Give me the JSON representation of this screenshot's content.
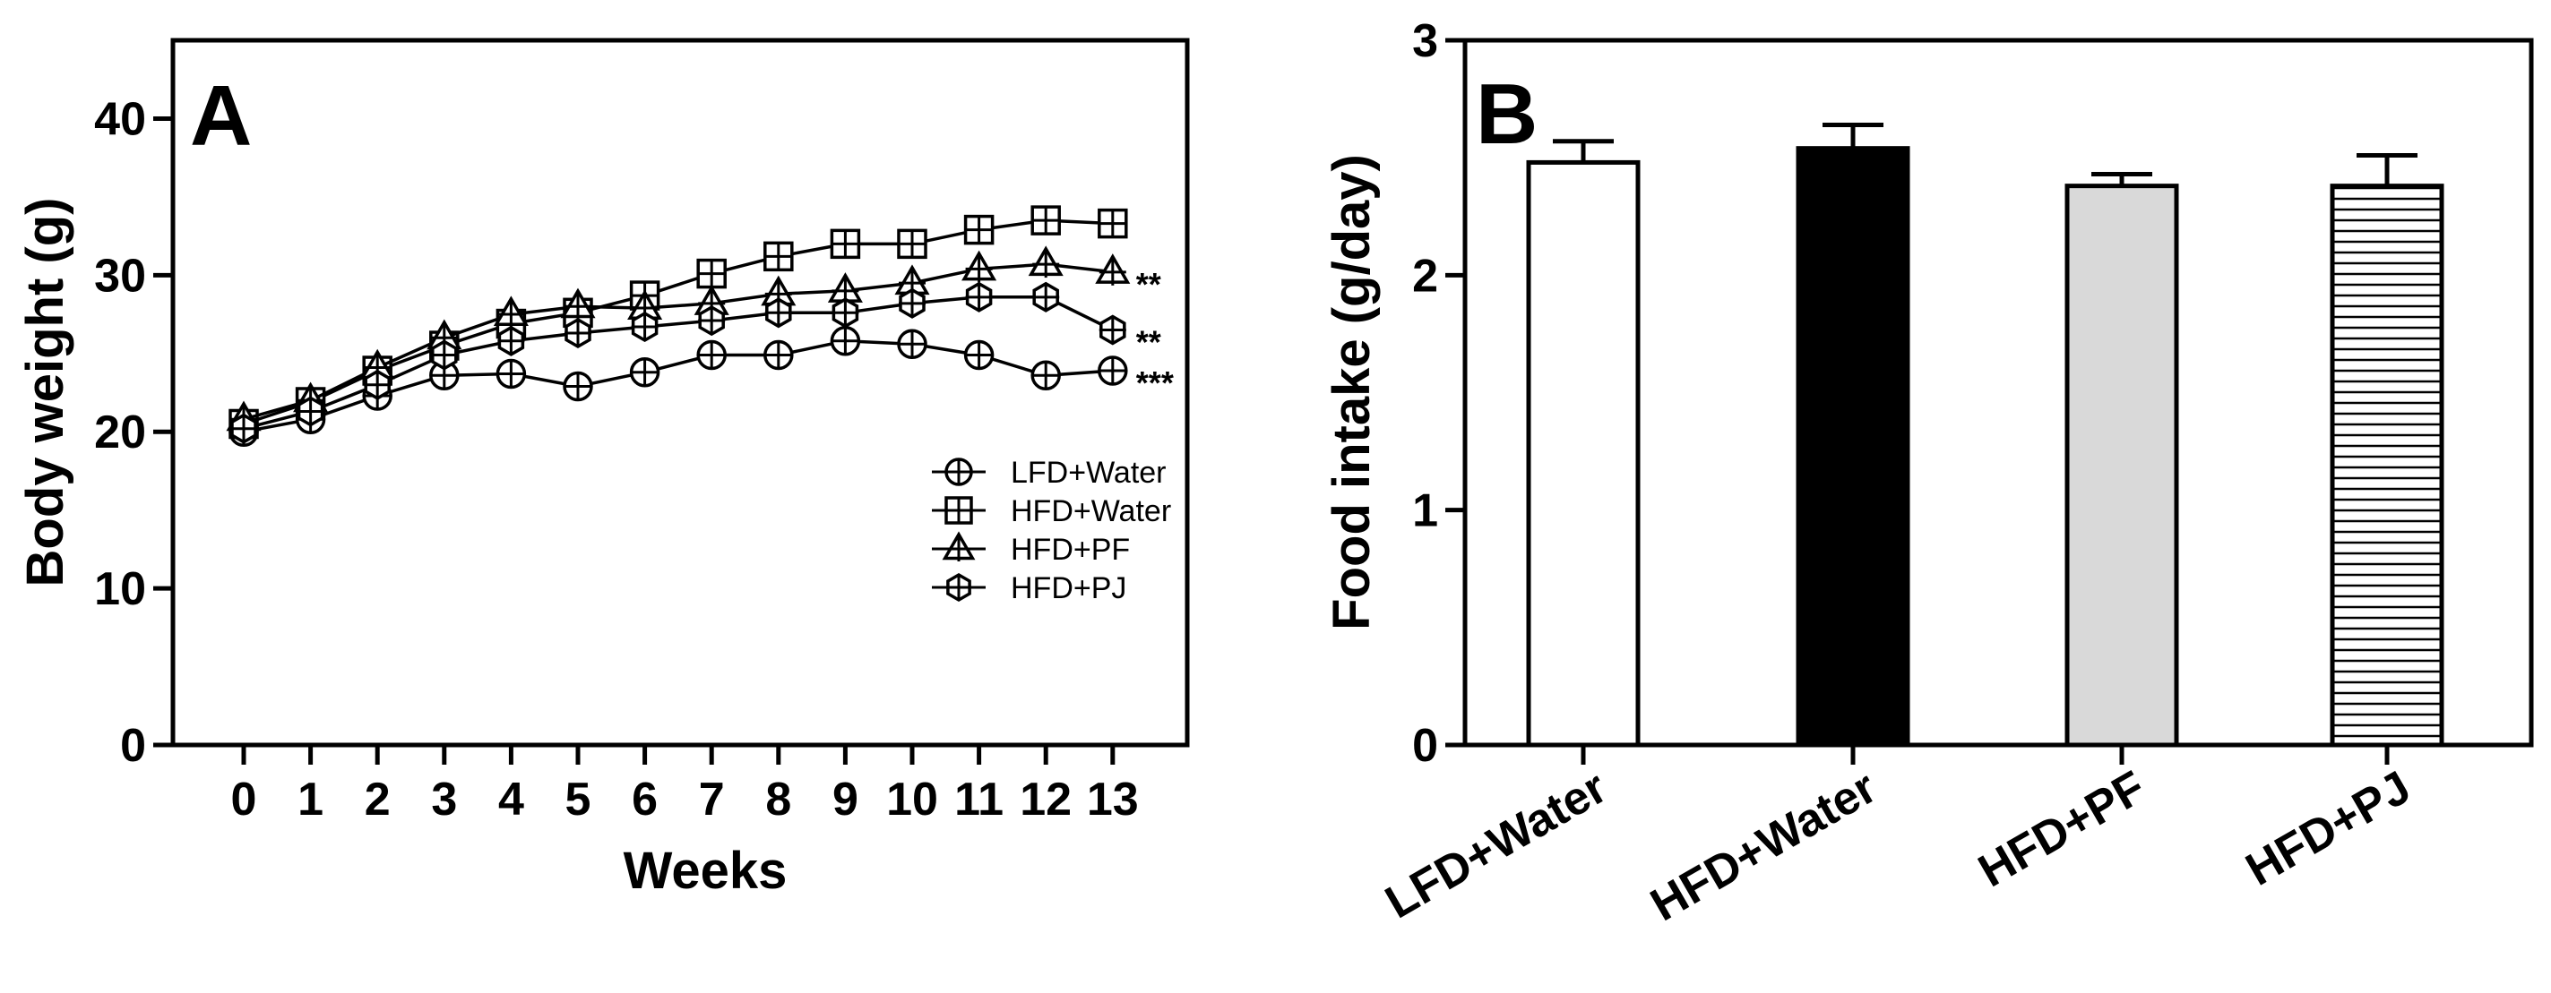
{
  "chart_data": [
    {
      "panel": "A",
      "type": "line",
      "xlabel": "Weeks",
      "ylabel": "Body weight (g)",
      "ylim": [
        0,
        45
      ],
      "xlim": [
        -0.5,
        13.5
      ],
      "yticks": [
        0,
        10,
        20,
        30,
        40
      ],
      "x": [
        0,
        1,
        2,
        3,
        4,
        5,
        6,
        7,
        8,
        9,
        10,
        11,
        12,
        13
      ],
      "xtick_labels": [
        "0",
        "1",
        "2",
        "3",
        "4",
        "5",
        "6",
        "7",
        "8",
        "9",
        "10",
        "11",
        "12",
        "13"
      ],
      "legend_position": "right",
      "series": [
        {
          "name": "LFD+Water",
          "marker": "circle-plus",
          "values": [
            20.0,
            20.8,
            22.3,
            23.6,
            23.7,
            22.9,
            23.8,
            24.9,
            24.9,
            25.8,
            25.6,
            24.9,
            23.6,
            23.9
          ],
          "significance": "***"
        },
        {
          "name": "HFD+Water",
          "marker": "square-plus",
          "values": [
            20.5,
            21.9,
            23.9,
            25.5,
            26.9,
            27.6,
            28.7,
            30.1,
            31.2,
            32.0,
            32.0,
            32.9,
            33.5,
            33.3
          ],
          "significance": ""
        },
        {
          "name": "HFD+PF",
          "marker": "triangle-plus",
          "values": [
            20.8,
            22.0,
            24.1,
            26.0,
            27.5,
            28.0,
            27.9,
            28.2,
            28.8,
            29.0,
            29.5,
            30.4,
            30.7,
            30.2
          ],
          "significance": "**"
        },
        {
          "name": "HFD+PJ",
          "marker": "hexagon-plus",
          "values": [
            20.2,
            21.3,
            23.0,
            24.9,
            25.8,
            26.3,
            26.7,
            27.1,
            27.6,
            27.6,
            28.2,
            28.6,
            28.6,
            26.5
          ],
          "significance": "**"
        }
      ]
    },
    {
      "panel": "B",
      "type": "bar",
      "ylabel": "Food intake (g/day)",
      "xlabel": "",
      "ylim": [
        0,
        3
      ],
      "yticks": [
        0,
        1,
        2,
        3
      ],
      "categories": [
        "LFD+Water",
        "HFD+Water",
        "HFD+PF",
        "HFD+PJ"
      ],
      "values": [
        2.48,
        2.54,
        2.38,
        2.38
      ],
      "errors": [
        0.09,
        0.1,
        0.05,
        0.13
      ],
      "fills": [
        "#ffffff",
        "#000000",
        "#d9d9d9",
        "hatched"
      ]
    }
  ]
}
